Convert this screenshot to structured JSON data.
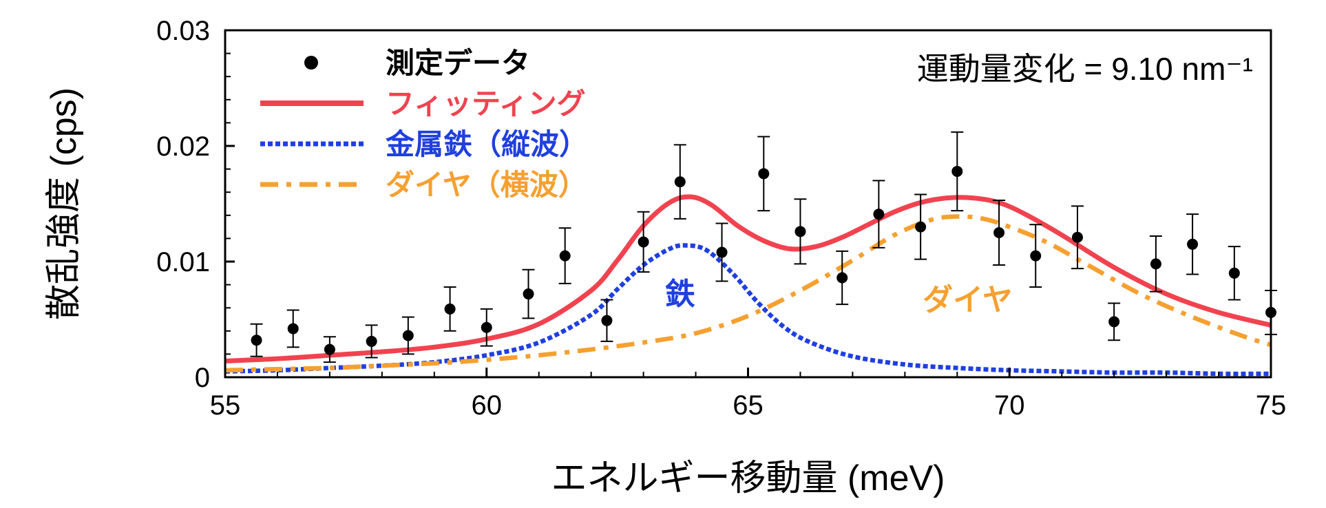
{
  "chart_data": {
    "type": "scatter",
    "xlabel": "エネルギー移動量 (meV)",
    "ylabel": "散乱強度 (cps)",
    "xlim": [
      55,
      75
    ],
    "ylim": [
      0,
      0.03
    ],
    "xticks": [
      55,
      60,
      65,
      70,
      75
    ],
    "yticks": [
      0,
      0.01,
      0.02,
      0.03
    ],
    "xtick_labels": [
      "55",
      "60",
      "65",
      "70",
      "75"
    ],
    "ytick_labels": [
      "0",
      "0.01",
      "0.02",
      "0.03"
    ],
    "annotation": "運動量変化 = 9.10 nm⁻¹",
    "grid": false,
    "legend_position": "top-left",
    "legend": [
      {
        "label": "測定データ",
        "style": "marker",
        "color": "#000000"
      },
      {
        "label": "フィッティング",
        "style": "solid",
        "color": "#f0434f"
      },
      {
        "label": "金属鉄（縦波）",
        "style": "dotted",
        "color": "#1f3fe0"
      },
      {
        "label": "ダイヤ（横波）",
        "style": "dashdot",
        "color": "#f5a030"
      }
    ],
    "curve_labels": [
      {
        "text": "鉄",
        "x": 63.7,
        "y": 0.0063,
        "color": "#1f3fe0"
      },
      {
        "text": "ダイヤ",
        "x": 69.2,
        "y": 0.0058,
        "color": "#f5a030"
      }
    ],
    "series": [
      {
        "name": "測定データ",
        "kind": "points",
        "color": "#000000",
        "x": [
          55.6,
          56.3,
          57.0,
          57.8,
          58.5,
          59.3,
          60.0,
          60.8,
          61.5,
          62.3,
          63.0,
          63.7,
          64.5,
          65.3,
          66.0,
          66.8,
          67.5,
          68.3,
          69.0,
          69.8,
          70.5,
          71.3,
          72.0,
          72.8,
          73.5,
          74.3,
          75.0
        ],
        "y": [
          0.0032,
          0.0042,
          0.0024,
          0.0031,
          0.0036,
          0.0059,
          0.0043,
          0.0072,
          0.0105,
          0.0049,
          0.0117,
          0.0169,
          0.0108,
          0.0176,
          0.0126,
          0.0086,
          0.0141,
          0.013,
          0.0178,
          0.0125,
          0.0105,
          0.0121,
          0.0048,
          0.0098,
          0.0115,
          0.009,
          0.0056
        ],
        "err": [
          0.0014,
          0.0016,
          0.0011,
          0.0014,
          0.0016,
          0.0019,
          0.0016,
          0.0021,
          0.0024,
          0.0018,
          0.0026,
          0.0032,
          0.0025,
          0.0032,
          0.0028,
          0.0023,
          0.0029,
          0.0028,
          0.0034,
          0.0028,
          0.0027,
          0.0027,
          0.0016,
          0.0024,
          0.0026,
          0.0023,
          0.0019
        ]
      },
      {
        "name": "フィッティング",
        "kind": "line",
        "style": "solid",
        "color": "#f0434f",
        "x": [
          55,
          56,
          57,
          58,
          59,
          60,
          61,
          62,
          62.5,
          63,
          63.5,
          63.9,
          64.3,
          64.8,
          65.3,
          65.8,
          66.3,
          66.8,
          67.3,
          67.8,
          68.3,
          68.8,
          69.3,
          69.8,
          70.3,
          71,
          72,
          73,
          74,
          75
        ],
        "y": [
          0.0014,
          0.0016,
          0.0019,
          0.0022,
          0.0026,
          0.0033,
          0.0046,
          0.0075,
          0.0101,
          0.0131,
          0.0151,
          0.0156,
          0.0149,
          0.0131,
          0.0118,
          0.0111,
          0.0113,
          0.0121,
          0.0132,
          0.0143,
          0.0151,
          0.0155,
          0.0155,
          0.0151,
          0.0141,
          0.0123,
          0.0095,
          0.0072,
          0.0056,
          0.0045
        ]
      },
      {
        "name": "金属鉄（縦波）",
        "kind": "line",
        "style": "dotted",
        "color": "#1f3fe0",
        "x": [
          55,
          56,
          57,
          58,
          59,
          60,
          61,
          62,
          62.5,
          63,
          63.5,
          63.8,
          64.2,
          64.7,
          65.2,
          65.7,
          66.2,
          67,
          68,
          69,
          70,
          71,
          72,
          73,
          74,
          75
        ],
        "y": [
          0.0005,
          0.0006,
          0.0008,
          0.001,
          0.0013,
          0.0019,
          0.003,
          0.0054,
          0.0076,
          0.0097,
          0.0111,
          0.0114,
          0.011,
          0.009,
          0.0064,
          0.0043,
          0.003,
          0.0018,
          0.0011,
          0.0008,
          0.0006,
          0.0005,
          0.0004,
          0.0004,
          0.0003,
          0.0003
        ]
      },
      {
        "name": "ダイヤ（横波）",
        "kind": "line",
        "style": "dashdot",
        "color": "#f5a030",
        "x": [
          55,
          56,
          57,
          58,
          59,
          60,
          61,
          62,
          63,
          64,
          65,
          66,
          67,
          67.8,
          68.5,
          69.0,
          69.5,
          70,
          70.7,
          71.5,
          72.5,
          73.5,
          74.5,
          75
        ],
        "y": [
          0.0006,
          0.0007,
          0.0008,
          0.001,
          0.0012,
          0.0015,
          0.0019,
          0.0024,
          0.003,
          0.0038,
          0.0053,
          0.0075,
          0.0101,
          0.0123,
          0.0136,
          0.0139,
          0.0137,
          0.013,
          0.0117,
          0.0097,
          0.0072,
          0.0052,
          0.0035,
          0.0028
        ]
      }
    ]
  }
}
